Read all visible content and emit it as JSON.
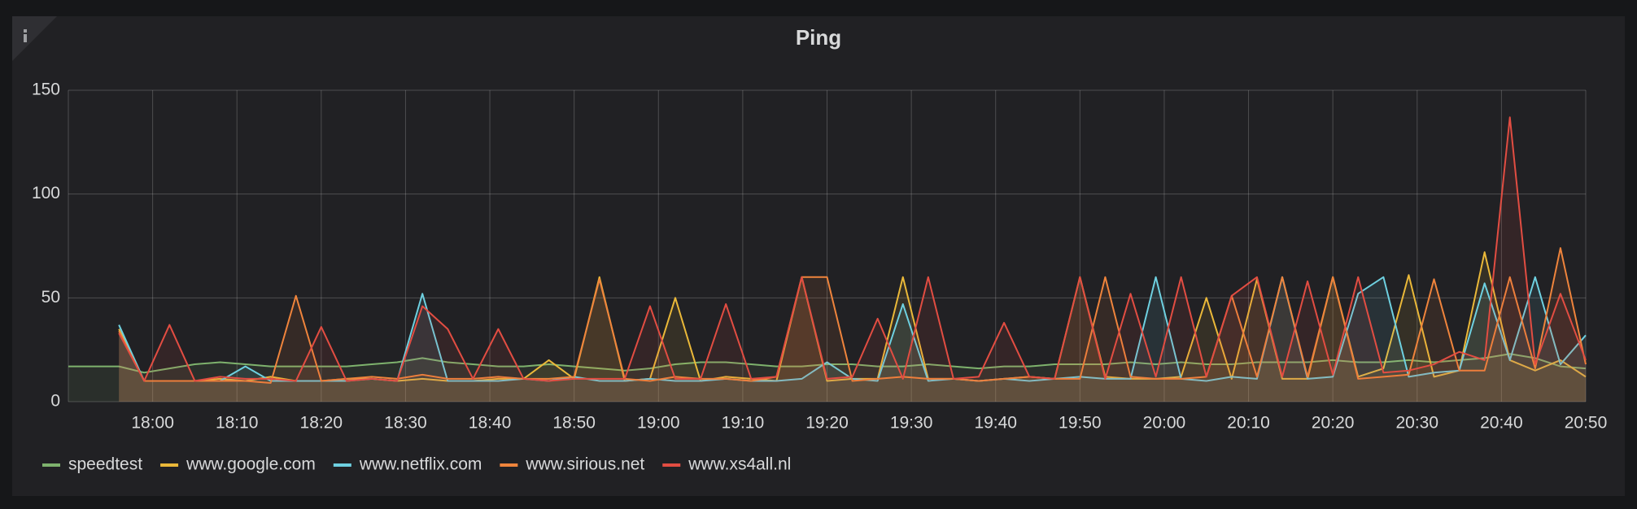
{
  "chart_data": {
    "type": "line",
    "title": "Ping",
    "x": [
      "17:50",
      "17:53",
      "17:56",
      "17:59",
      "18:02",
      "18:05",
      "18:08",
      "18:11",
      "18:14",
      "18:17",
      "18:20",
      "18:23",
      "18:26",
      "18:29",
      "18:32",
      "18:35",
      "18:38",
      "18:41",
      "18:44",
      "18:47",
      "18:50",
      "18:53",
      "18:56",
      "18:59",
      "19:02",
      "19:05",
      "19:08",
      "19:11",
      "19:14",
      "19:17",
      "19:20",
      "19:23",
      "19:26",
      "19:29",
      "19:32",
      "19:35",
      "19:38",
      "19:41",
      "19:44",
      "19:47",
      "19:50",
      "19:53",
      "19:56",
      "19:59",
      "20:02",
      "20:05",
      "20:08",
      "20:11",
      "20:14",
      "20:17",
      "20:20",
      "20:23",
      "20:26",
      "20:29",
      "20:32",
      "20:35",
      "20:38",
      "20:41",
      "20:44",
      "20:47",
      "20:50"
    ],
    "series": [
      {
        "name": "speedtest",
        "color": "#7eb26d",
        "values": [
          17,
          17,
          17,
          14,
          16,
          18,
          19,
          18,
          17,
          17,
          17,
          17,
          18,
          19,
          21,
          19,
          18,
          17,
          17,
          18,
          17,
          16,
          15,
          16,
          18,
          19,
          19,
          18,
          17,
          17,
          18,
          18,
          17,
          17,
          18,
          17,
          16,
          17,
          17,
          18,
          18,
          18,
          19,
          18,
          19,
          18,
          18,
          19,
          19,
          19,
          20,
          19,
          19,
          20,
          19,
          20,
          21,
          23,
          21,
          17,
          16
        ]
      },
      {
        "name": "www.google.com",
        "color": "#eab839",
        "values": [
          null,
          null,
          35,
          10,
          10,
          10,
          11,
          10,
          12,
          10,
          10,
          11,
          11,
          10,
          11,
          10,
          10,
          11,
          11,
          20,
          11,
          60,
          10,
          11,
          50,
          10,
          12,
          11,
          10,
          60,
          10,
          11,
          11,
          60,
          11,
          11,
          10,
          11,
          12,
          11,
          60,
          12,
          11,
          11,
          12,
          50,
          11,
          59,
          11,
          11,
          60,
          12,
          16,
          61,
          12,
          15,
          72,
          20,
          15,
          20,
          12
        ]
      },
      {
        "name": "www.netflix.com",
        "color": "#6ed0e0",
        "values": [
          null,
          null,
          37,
          10,
          10,
          10,
          10,
          17,
          10,
          10,
          10,
          10,
          11,
          10,
          52,
          10,
          10,
          10,
          11,
          10,
          12,
          10,
          10,
          11,
          10,
          10,
          11,
          10,
          10,
          11,
          19,
          11,
          10,
          47,
          10,
          11,
          10,
          11,
          10,
          11,
          12,
          11,
          11,
          60,
          11,
          10,
          12,
          11,
          60,
          11,
          12,
          52,
          60,
          12,
          14,
          15,
          57,
          20,
          60,
          18,
          32
        ]
      },
      {
        "name": "www.sirious.net",
        "color": "#ef843c",
        "values": [
          null,
          null,
          34,
          10,
          10,
          10,
          10,
          10,
          9,
          51,
          10,
          11,
          12,
          11,
          13,
          11,
          11,
          12,
          11,
          11,
          12,
          59,
          11,
          10,
          12,
          11,
          11,
          10,
          12,
          60,
          60,
          10,
          11,
          12,
          11,
          11,
          10,
          11,
          12,
          11,
          11,
          60,
          12,
          11,
          11,
          12,
          51,
          12,
          60,
          12,
          60,
          11,
          12,
          13,
          59,
          15,
          15,
          60,
          16,
          74,
          18
        ]
      },
      {
        "name": "www.xs4all.nl",
        "color": "#e24d42",
        "values": [
          null,
          null,
          33,
          10,
          37,
          10,
          12,
          11,
          11,
          10,
          36,
          10,
          11,
          10,
          46,
          35,
          11,
          35,
          11,
          10,
          11,
          11,
          11,
          46,
          11,
          11,
          47,
          11,
          12,
          60,
          11,
          12,
          40,
          11,
          60,
          11,
          12,
          38,
          12,
          11,
          60,
          11,
          52,
          12,
          60,
          12,
          51,
          60,
          12,
          58,
          13,
          60,
          14,
          15,
          18,
          24,
          20,
          137,
          18,
          52,
          20
        ]
      }
    ],
    "xlim": [
      "17:50",
      "20:50"
    ],
    "xticks": [
      "18:00",
      "18:10",
      "18:20",
      "18:30",
      "18:40",
      "18:50",
      "19:00",
      "19:10",
      "19:20",
      "19:30",
      "19:40",
      "19:50",
      "20:00",
      "20:10",
      "20:20",
      "20:30",
      "20:40",
      "20:50"
    ],
    "ylim": [
      0,
      150
    ],
    "yticks": [
      0,
      50,
      100,
      150
    ],
    "grid": true,
    "legend": "bottom-left",
    "fill": true
  }
}
